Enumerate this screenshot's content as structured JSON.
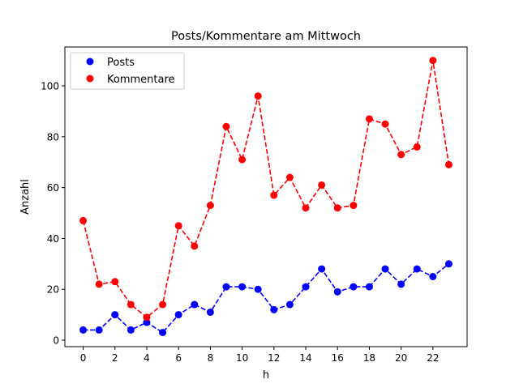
{
  "chart_data": {
    "type": "line",
    "title": "Posts/Kommentare am Mittwoch",
    "xlabel": "h",
    "ylabel": "Anzahl",
    "x": [
      0,
      1,
      2,
      3,
      4,
      5,
      6,
      7,
      8,
      9,
      10,
      11,
      12,
      13,
      14,
      15,
      16,
      17,
      18,
      19,
      20,
      21,
      22,
      23
    ],
    "xlim": [
      -1.15,
      24.15
    ],
    "ylim": [
      -2.55,
      115.3
    ],
    "xticks": [
      "0",
      "2",
      "4",
      "6",
      "8",
      "10",
      "12",
      "14",
      "16",
      "18",
      "20",
      "22"
    ],
    "xtick_values": [
      0,
      2,
      4,
      6,
      8,
      10,
      12,
      14,
      16,
      18,
      20,
      22
    ],
    "yticks": [
      "0",
      "20",
      "40",
      "60",
      "80",
      "100"
    ],
    "ytick_values": [
      0,
      20,
      40,
      60,
      80,
      100
    ],
    "grid": false,
    "legend_position": "top-left",
    "series": [
      {
        "name": "Posts",
        "color": "#0000ff",
        "values": [
          4,
          4,
          10,
          4,
          7,
          3,
          10,
          14,
          11,
          21,
          21,
          20,
          12,
          14,
          21,
          28,
          19,
          21,
          21,
          28,
          22,
          28,
          25,
          30
        ]
      },
      {
        "name": "Kommentare",
        "color": "#ff0000",
        "values": [
          47,
          22,
          23,
          14,
          9,
          14,
          45,
          37,
          53,
          84,
          71,
          96,
          57,
          64,
          52,
          61,
          52,
          53,
          87,
          85,
          73,
          76,
          110,
          69
        ]
      }
    ]
  }
}
